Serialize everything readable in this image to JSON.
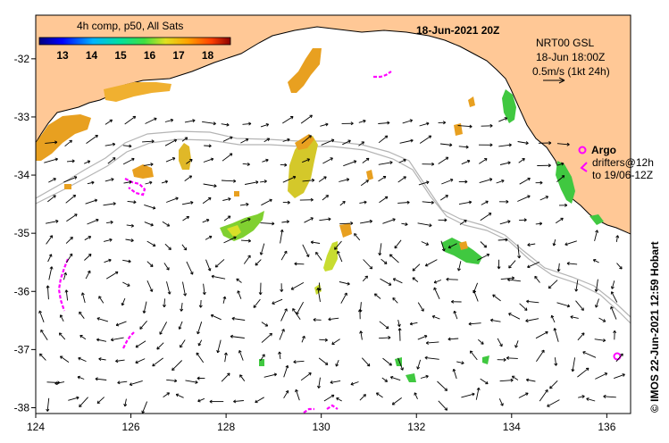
{
  "title": "18-Jun-2021 20Z",
  "colorbar": {
    "title": "4h comp, p50, All Sats",
    "ticks": [
      "13",
      "14",
      "15",
      "16",
      "17",
      "18"
    ]
  },
  "current_scale": {
    "product": "NRT00 GSL",
    "time": "18-Jun 18:00Z",
    "scale": "0.5m/s (1kt 24h)"
  },
  "argo_legend": {
    "argo": "Argo",
    "drifters_line1": "drifters@12h",
    "drifters_line2": "to 19/06-12Z"
  },
  "credit": "© IMOS 22-Jun-2021 12:59 Hobart",
  "axes": {
    "x_ticks": [
      "124",
      "126",
      "128",
      "130",
      "132",
      "134",
      "136"
    ],
    "y_ticks": [
      "-32",
      "-33",
      "-34",
      "-35",
      "-36",
      "-37",
      "-38"
    ]
  },
  "colors": {
    "land": "#ffc896",
    "argo": "#ff00ff",
    "isobath": "#b4b4b4",
    "sst_warm": "#e8a020",
    "sst_mid": "#d4c82a",
    "sst_cool": "#3cc43c"
  }
}
